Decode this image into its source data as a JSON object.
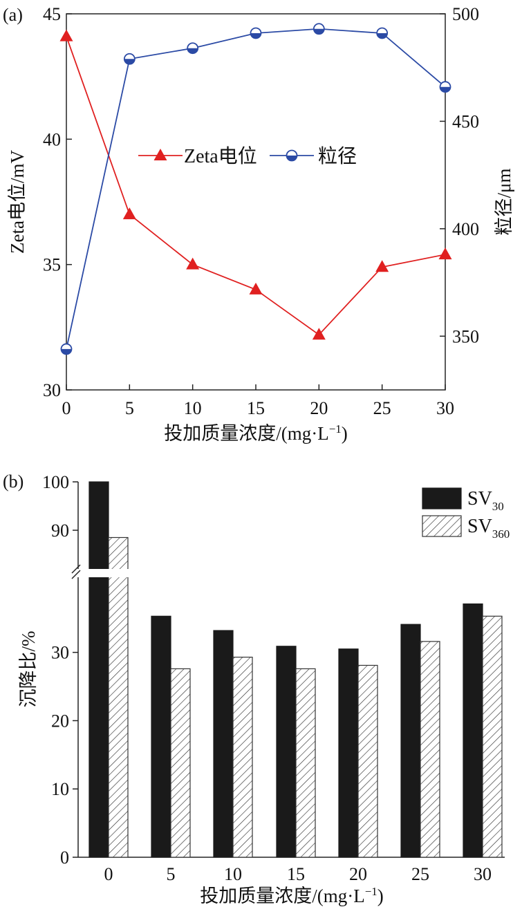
{
  "chart_data": [
    {
      "panel": "(a)",
      "type": "line",
      "x": [
        0,
        5,
        10,
        15,
        20,
        25,
        30
      ],
      "xlabel": "投加质量浓度/(mg·L",
      "xlabel_sup": "−1",
      "xlabel_end": ")",
      "xticks": [
        "0",
        "5",
        "10",
        "15",
        "20",
        "25",
        "30"
      ],
      "xlim": [
        0,
        30
      ],
      "ylabel_left": "Zeta电位/mV",
      "ylim_left": [
        30,
        45
      ],
      "yticks_left": [
        "30",
        "35",
        "40",
        "45"
      ],
      "ylabel_right": "粒径/μm",
      "ylim_right": [
        325,
        500
      ],
      "yticks_right": [
        "350",
        "400",
        "450",
        "500"
      ],
      "legend_position": "center",
      "grid": false,
      "series": [
        {
          "name": "Zeta电位",
          "axis": "left",
          "marker": "triangle",
          "color": "#e02020",
          "values": [
            44.1,
            37.0,
            35.0,
            34.0,
            32.2,
            34.9,
            35.4
          ]
        },
        {
          "name": "粒径",
          "axis": "right",
          "marker": "half-filled-circle",
          "color": "#2b4aa5",
          "values": [
            344,
            479,
            484,
            491,
            493,
            491,
            466
          ]
        }
      ]
    },
    {
      "panel": "(b)",
      "type": "bar",
      "categories": [
        "0",
        "5",
        "10",
        "15",
        "20",
        "25",
        "30"
      ],
      "ylabel": "沉降比/%",
      "xlabel": "投加质量浓度/(mg·L",
      "xlabel_sup": "−1",
      "xlabel_end": ")",
      "yticks_lower": [
        "0",
        "10",
        "20",
        "30"
      ],
      "yticks_upper": [
        "90",
        "100"
      ],
      "ylim_lower": [
        0,
        41
      ],
      "ylim_upper": [
        82,
        100
      ],
      "axis_break": true,
      "legend_position": "top-right",
      "grid": false,
      "series": [
        {
          "name": "SV",
          "name_sub": "30",
          "fill": "solid",
          "color": "#1a1a1a",
          "values": [
            100,
            35.3,
            33.2,
            30.9,
            30.5,
            34.1,
            37.1
          ]
        },
        {
          "name": "SV",
          "name_sub": "360",
          "fill": "hatched",
          "color": "#333333",
          "values": [
            88.5,
            27.6,
            29.3,
            27.6,
            28.1,
            31.6,
            35.3
          ]
        }
      ]
    }
  ]
}
